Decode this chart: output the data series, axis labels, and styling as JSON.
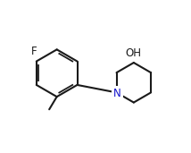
{
  "background": "#ffffff",
  "line_color": "#1a1a1a",
  "N_color": "#1414cc",
  "line_width": 1.5,
  "font_size": 8.5,
  "figsize": [
    2.14,
    1.71
  ],
  "dpi": 100,
  "F_label": "F",
  "OH_label": "OH",
  "N_label": "N",
  "xlim": [
    -0.5,
    9.5
  ],
  "ylim": [
    -0.5,
    8.5
  ]
}
